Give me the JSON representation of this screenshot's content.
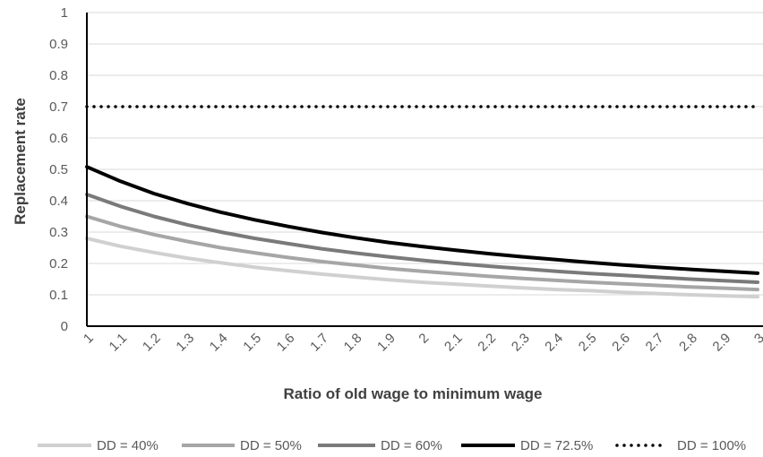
{
  "chart_data": {
    "type": "line",
    "xlabel": "Ratio of old wage to minimum wage",
    "ylabel": "Replacement rate",
    "xlim": [
      1,
      3
    ],
    "ylim": [
      0,
      1
    ],
    "grid": true,
    "legend_position": "bottom",
    "x_ticks": [
      "1",
      "1.1",
      "1.2",
      "1.3",
      "1.4",
      "1.5",
      "1.6",
      "1.7",
      "1.8",
      "1.9",
      "2",
      "2.1",
      "2.2",
      "2.3",
      "2.4",
      "2.5",
      "2.6",
      "2.7",
      "2.8",
      "2.9",
      "3"
    ],
    "y_ticks": [
      "0",
      "0.1",
      "0.2",
      "0.3",
      "0.4",
      "0.5",
      "0.6",
      "0.7",
      "0.8",
      "0.9",
      "1"
    ],
    "x": [
      1,
      1.1,
      1.2,
      1.3,
      1.4,
      1.5,
      1.6,
      1.7,
      1.8,
      1.9,
      2,
      2.1,
      2.2,
      2.3,
      2.4,
      2.5,
      2.6,
      2.7,
      2.8,
      2.9,
      3
    ],
    "series": [
      {
        "name": "DD = 40%",
        "color": "#d0d0d0",
        "style": "solid",
        "values": [
          0.28,
          0.255,
          0.235,
          0.217,
          0.202,
          0.188,
          0.177,
          0.166,
          0.157,
          0.148,
          0.14,
          0.134,
          0.128,
          0.122,
          0.117,
          0.113,
          0.108,
          0.104,
          0.1,
          0.097,
          0.094
        ]
      },
      {
        "name": "DD = 50%",
        "color": "#a6a6a6",
        "style": "solid",
        "values": [
          0.35,
          0.318,
          0.292,
          0.27,
          0.25,
          0.234,
          0.219,
          0.206,
          0.195,
          0.184,
          0.175,
          0.167,
          0.159,
          0.152,
          0.146,
          0.14,
          0.135,
          0.13,
          0.125,
          0.121,
          0.117
        ]
      },
      {
        "name": "DD = 60%",
        "color": "#7a7a7a",
        "style": "solid",
        "values": [
          0.42,
          0.382,
          0.35,
          0.323,
          0.3,
          0.28,
          0.263,
          0.247,
          0.233,
          0.221,
          0.21,
          0.2,
          0.191,
          0.183,
          0.175,
          0.168,
          0.162,
          0.156,
          0.15,
          0.145,
          0.14
        ]
      },
      {
        "name": "DD = 72.5%",
        "color": "#000000",
        "style": "solid",
        "values": [
          0.508,
          0.462,
          0.423,
          0.391,
          0.363,
          0.339,
          0.318,
          0.299,
          0.282,
          0.267,
          0.254,
          0.242,
          0.231,
          0.221,
          0.212,
          0.203,
          0.195,
          0.188,
          0.181,
          0.175,
          0.169
        ]
      },
      {
        "name": "DD = 100%",
        "color": "#000000",
        "style": "dotted",
        "values": [
          0.7,
          0.7,
          0.7,
          0.7,
          0.7,
          0.7,
          0.7,
          0.7,
          0.7,
          0.7,
          0.7,
          0.7,
          0.7,
          0.7,
          0.7,
          0.7,
          0.7,
          0.7,
          0.7,
          0.7,
          0.7
        ]
      }
    ]
  }
}
